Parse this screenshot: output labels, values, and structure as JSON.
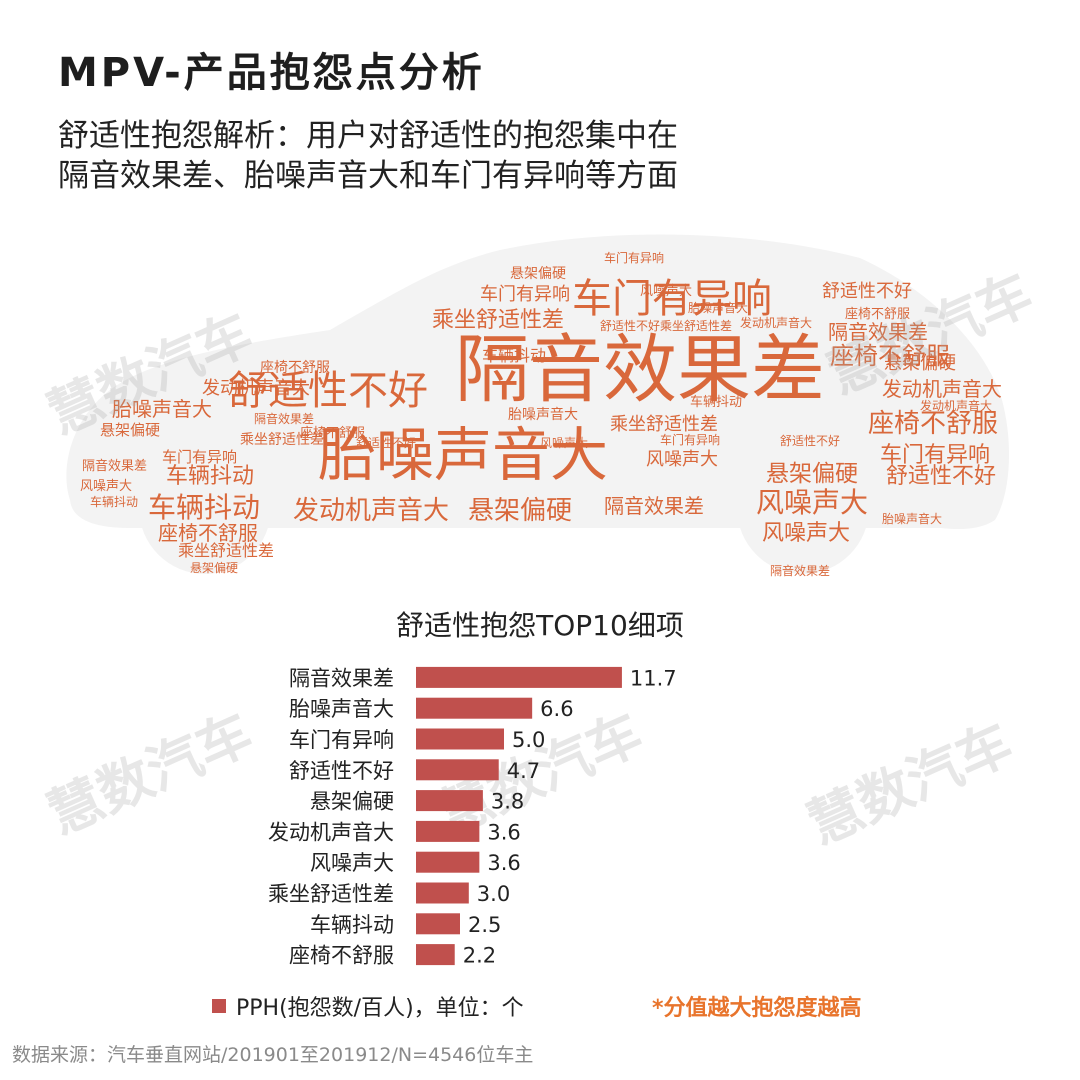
{
  "title": "MPV-产品抱怨点分析",
  "subtitle": {
    "line1": "舒适性抱怨解析：用户对舒适性的抱怨集中在",
    "line2": "隔音效果差、胎噪声音大和车门有异响等方面"
  },
  "watermark": "慧数汽车",
  "wordcloud": {
    "color": "#d9683b",
    "words": [
      "隔音效果差",
      "胎噪声音大",
      "车门有异响",
      "舒适性不好",
      "悬架偏硬",
      "发动机声音大",
      "风噪声大",
      "乘坐舒适性差",
      "车辆抖动",
      "座椅不舒服"
    ]
  },
  "chart_data": {
    "type": "bar",
    "orientation": "horizontal",
    "title": "舒适性抱怨TOP10细项",
    "categories": [
      "隔音效果差",
      "胎噪声音大",
      "车门有异响",
      "舒适性不好",
      "悬架偏硬",
      "发动机声音大",
      "风噪声大",
      "乘坐舒适性差",
      "车辆抖动",
      "座椅不舒服"
    ],
    "values": [
      11.7,
      6.6,
      5.0,
      4.7,
      3.8,
      3.6,
      3.6,
      3.0,
      2.5,
      2.2
    ],
    "value_labels": [
      "11.7",
      "6.6",
      "5.0",
      "4.7",
      "3.8",
      "3.6",
      "3.6",
      "3.0",
      "2.5",
      "2.2"
    ],
    "series": [
      {
        "name": "PPH(抱怨数/百人)，单位：个",
        "color": "#c0504d"
      }
    ],
    "legend_position": "bottom-left",
    "grid": false
  },
  "note": "*分值越大抱怨度越高",
  "source": "数据来源：汽车垂直网站/201901至201912/N=4546位车主"
}
